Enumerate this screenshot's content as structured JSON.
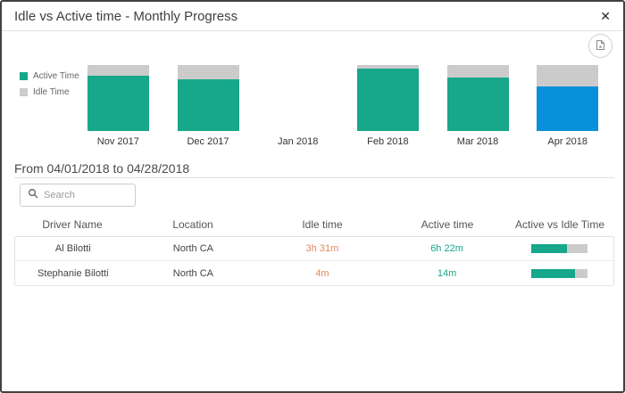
{
  "modal": {
    "title": "Idle vs Active time - Monthly Progress",
    "close_glyph": "✕"
  },
  "chart_data": {
    "type": "bar",
    "stacked": true,
    "units": "percent of month total (100% stacked)",
    "categories": [
      "Nov 2017",
      "Dec 2017",
      "Jan 2018",
      "Feb 2018",
      "Mar 2018",
      "Apr 2018"
    ],
    "series": [
      {
        "name": "Active Time",
        "values": [
          84,
          78,
          null,
          95,
          81,
          68
        ]
      },
      {
        "name": "Idle Time",
        "values": [
          16,
          22,
          null,
          5,
          19,
          32
        ]
      }
    ],
    "selected_category": "Apr 2018",
    "legend_position": "left"
  },
  "period": {
    "label": "From 04/01/2018 to 04/28/2018"
  },
  "search": {
    "placeholder": "Search"
  },
  "table": {
    "columns": [
      "Driver Name",
      "Location",
      "Idle time",
      "Active time",
      "Active vs Idle Time"
    ],
    "rows": [
      {
        "driver": "Al Bilotti",
        "location": "North CA",
        "idle": "3h 31m",
        "active": "6h 22m",
        "active_pct": 64
      },
      {
        "driver": "Stephanie Bilotti",
        "location": "North CA",
        "idle": "4m",
        "active": "14m",
        "active_pct": 78
      }
    ]
  },
  "colors": {
    "active": "#17A78A",
    "idle": "#CBCBCB",
    "selected": "#0990DB",
    "idle_text": "#E2885C",
    "active_text": "#17A78A"
  }
}
